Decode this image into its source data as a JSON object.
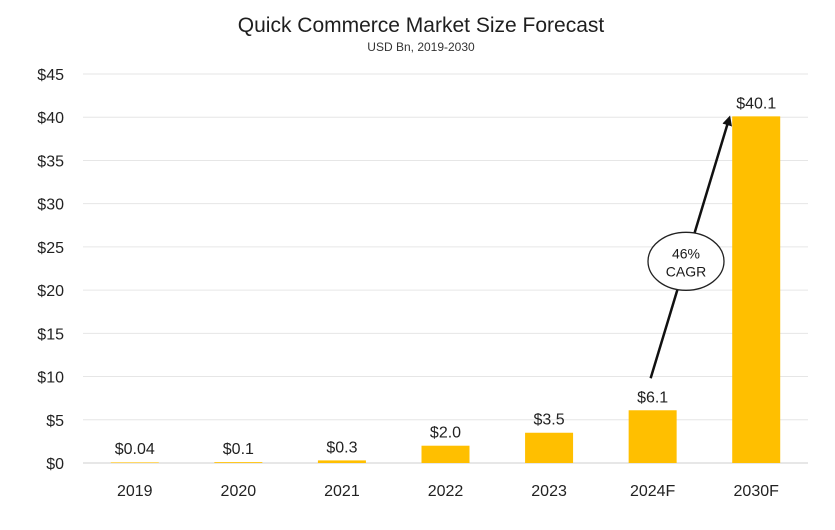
{
  "chart_data": {
    "type": "bar",
    "title": "Quick Commerce Market Size Forecast",
    "subtitle": "USD Bn, 2019-2030",
    "xlabel": "",
    "ylabel": "",
    "categories": [
      "2019",
      "2020",
      "2021",
      "2022",
      "2023",
      "2024F",
      "2030F"
    ],
    "values": [
      0.04,
      0.1,
      0.3,
      2.0,
      3.5,
      6.1,
      40.1
    ],
    "data_labels": [
      "$0.04",
      "$0.1",
      "$0.3",
      "$2.0",
      "$3.5",
      "$6.1",
      "$40.1"
    ],
    "ylim": [
      0,
      45
    ],
    "yticks": [
      0,
      5,
      10,
      15,
      20,
      25,
      30,
      35,
      40,
      45
    ],
    "ytick_labels": [
      "$0",
      "$5",
      "$10",
      "$15",
      "$20",
      "$25",
      "$30",
      "$35",
      "$40",
      "$45"
    ],
    "grid": true,
    "legend": "none",
    "bar_color": "#FFBF00",
    "annotation": {
      "line1": "46%",
      "line2": "CAGR",
      "from_category": "2024F",
      "to_category": "2030F"
    }
  }
}
